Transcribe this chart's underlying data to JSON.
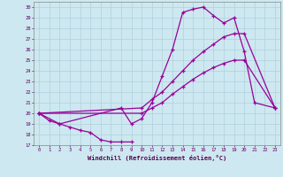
{
  "xlabel": "Windchill (Refroidissement éolien,°C)",
  "background_color": "#cde8f0",
  "grid_color": "#b0d0dc",
  "line_color": "#990099",
  "xlim": [
    -0.5,
    23.5
  ],
  "ylim": [
    17,
    30.5
  ],
  "xticks": [
    0,
    1,
    2,
    3,
    4,
    5,
    6,
    7,
    8,
    9,
    10,
    11,
    12,
    13,
    14,
    15,
    16,
    17,
    18,
    19,
    20,
    21,
    22,
    23
  ],
  "yticks": [
    17,
    18,
    19,
    20,
    21,
    22,
    23,
    24,
    25,
    26,
    27,
    28,
    29,
    30
  ],
  "s1x": [
    0,
    1,
    2,
    3,
    4,
    5,
    6,
    7,
    8,
    9
  ],
  "s1y": [
    20.0,
    19.3,
    19.0,
    18.7,
    18.4,
    18.2,
    17.5,
    17.3,
    17.3,
    17.3
  ],
  "s2x": [
    0,
    2,
    8,
    9,
    10,
    11,
    12,
    13,
    14,
    15,
    16,
    17,
    18,
    19,
    20,
    21,
    23
  ],
  "s2y": [
    20.0,
    19.0,
    20.5,
    19.0,
    19.5,
    21.0,
    23.5,
    26.0,
    29.5,
    29.8,
    30.0,
    29.2,
    28.5,
    29.0,
    25.8,
    21.0,
    20.5
  ],
  "s3x": [
    0,
    10,
    11,
    12,
    13,
    14,
    15,
    16,
    17,
    18,
    19,
    20,
    23
  ],
  "s3y": [
    20.0,
    20.5,
    21.3,
    22.0,
    23.0,
    24.0,
    25.0,
    25.8,
    26.5,
    27.2,
    27.5,
    27.5,
    20.5
  ],
  "s4x": [
    0,
    10,
    11,
    12,
    13,
    14,
    15,
    16,
    17,
    18,
    19,
    20,
    23
  ],
  "s4y": [
    20.0,
    20.0,
    20.5,
    21.0,
    21.8,
    22.5,
    23.2,
    23.8,
    24.3,
    24.7,
    25.0,
    25.0,
    20.5
  ]
}
